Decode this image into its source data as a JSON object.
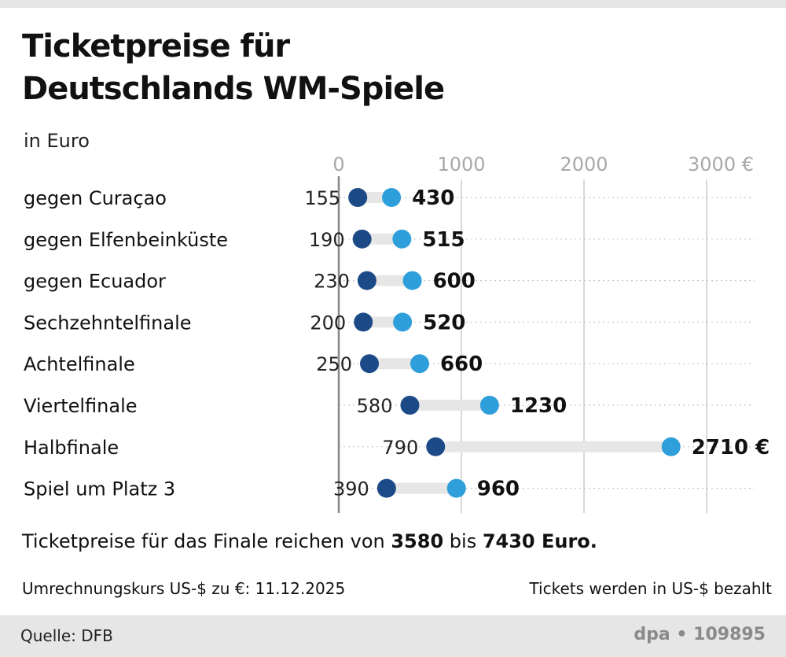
{
  "title_line1": "Ticketpreise für",
  "title_line2": "Deutschlands WM-Spiele",
  "subtitle": "in Euro",
  "chart_data": {
    "type": "dumbbell",
    "title": "Ticketpreise für Deutschlands WM-Spiele",
    "unit_label": "in Euro",
    "x_ticks": [
      "0",
      "1000",
      "2000",
      "3000 €"
    ],
    "x_tick_values": [
      0,
      1000,
      2000,
      3000
    ],
    "xlim": [
      0,
      3300
    ],
    "grid": true,
    "categories": [
      "gegen Curaçao",
      "gegen Elfenbeinküste",
      "gegen Ecuador",
      "Sechzehntelfinale",
      "Achtelfinale",
      "Viertelfinale",
      "Halbfinale",
      "Spiel um Platz 3"
    ],
    "min_values": [
      155,
      190,
      230,
      200,
      250,
      580,
      790,
      390
    ],
    "max_values": [
      430,
      515,
      600,
      520,
      660,
      1230,
      2710,
      960
    ],
    "min_labels": [
      "155",
      "190",
      "230",
      "200",
      "250",
      "580",
      "790",
      "390"
    ],
    "max_labels": [
      "430",
      "515",
      "600",
      "520",
      "660",
      "1230",
      "2710 €",
      "960"
    ],
    "colors": {
      "min": "#1b4a86",
      "max": "#2e9fda",
      "connector": "#e6e6e6",
      "grid": "#cccccc",
      "tick_text": "#a8a8a8",
      "axis": "#888888"
    }
  },
  "note": {
    "before": "Ticketpreise für das Finale reichen von ",
    "low": "3580",
    "mid": " bis ",
    "high": "7430 Euro."
  },
  "exchange_rate": "Umrechnungskurs US-$ zu €: 11.12.2025",
  "payment_note": "Tickets werden in US-$ bezahlt",
  "footer": {
    "source": "Quelle: DFB",
    "credit": "dpa • 109895"
  }
}
